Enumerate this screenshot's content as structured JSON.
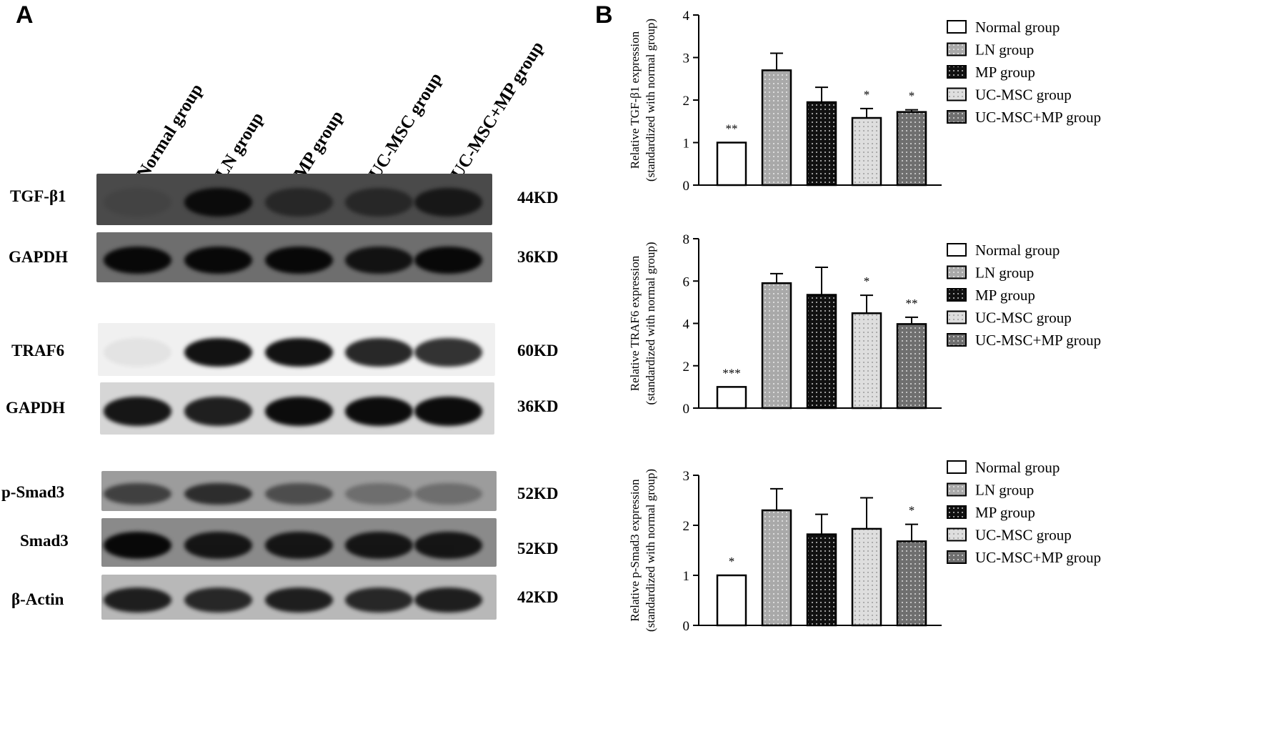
{
  "panel_a": {
    "letter": "A",
    "lanes": [
      "Normal group",
      "LN group",
      "MP group",
      "UC-MSC group",
      "UC-MSC+MP group"
    ],
    "blots": [
      {
        "protein": "TGF-β1",
        "kd": "44KD",
        "bg": "#4a4a4a",
        "band_color": "#0b0b0b",
        "intensity": [
          0.1,
          1.0,
          0.55,
          0.55,
          0.8
        ]
      },
      {
        "protein": "GAPDH",
        "kd": "36KD",
        "bg": "#6e6e6e",
        "band_color": "#080808",
        "intensity": [
          1.0,
          1.0,
          1.0,
          0.9,
          1.0
        ]
      },
      {
        "protein": "TRAF6",
        "kd": "60KD",
        "bg": "#f0f0f0",
        "band_color": "#121212",
        "intensity": [
          0.05,
          1.0,
          1.0,
          0.9,
          0.85
        ]
      },
      {
        "protein": "GAPDH",
        "kd": "36KD",
        "bg": "#d6d6d6",
        "band_color": "#0c0c0c",
        "intensity": [
          0.95,
          0.9,
          1.0,
          1.0,
          1.0
        ]
      },
      {
        "protein": "p-Smad3",
        "kd": "52KD",
        "bg": "#9c9c9c",
        "band_color": "#1a1a1a",
        "intensity": [
          0.7,
          0.85,
          0.6,
          0.35,
          0.35
        ]
      },
      {
        "protein": "Smad3",
        "kd": "52KD",
        "bg": "#8a8a8a",
        "band_color": "#080808",
        "intensity": [
          1.0,
          0.9,
          0.9,
          0.9,
          0.9
        ]
      },
      {
        "protein": "β-Actin",
        "kd": "42KD",
        "bg": "#b8b8b8",
        "band_color": "#0e0e0e",
        "intensity": [
          0.9,
          0.85,
          0.9,
          0.85,
          0.9
        ]
      }
    ]
  },
  "panel_b": {
    "letter": "B"
  },
  "legend_entries": [
    "Normal group",
    "LN group",
    "MP group",
    "UC-MSC group",
    "UC-MSC+MP group"
  ],
  "series_styles": [
    {
      "fill": "#ffffff",
      "dot": "none"
    },
    {
      "fill": "#a9a9a9",
      "dot": "#ffffff"
    },
    {
      "fill": "#111111",
      "dot": "#ffffff"
    },
    {
      "fill": "#dedede",
      "dot": "#888888"
    },
    {
      "fill": "#6f6f6f",
      "dot": "#ffffff"
    }
  ],
  "chart_data": [
    {
      "type": "bar",
      "ylabel_line1": "Relative TGF-β1 expression",
      "ylabel_line2": "(standardized with normal group)",
      "categories": [
        "Normal group",
        "LN group",
        "MP group",
        "UC-MSC group",
        "UC-MSC+MP group"
      ],
      "values": [
        1.0,
        2.7,
        1.95,
        1.58,
        1.72
      ],
      "errors": [
        0,
        0.4,
        0.35,
        0.22,
        0.05
      ],
      "significance": [
        "**",
        "",
        "",
        "*",
        "*"
      ],
      "ylim": [
        0,
        4
      ],
      "yticks": [
        "0",
        "1",
        "2",
        "3",
        "4"
      ]
    },
    {
      "type": "bar",
      "ylabel_line1": "Relative TRAF6 expression",
      "ylabel_line2": "(standardized with normal group)",
      "categories": [
        "Normal group",
        "LN group",
        "MP group",
        "UC-MSC group",
        "UC-MSC+MP group"
      ],
      "values": [
        1.0,
        5.9,
        5.35,
        4.48,
        3.97
      ],
      "errors": [
        0,
        0.45,
        1.3,
        0.85,
        0.32
      ],
      "significance": [
        "***",
        "",
        "",
        "*",
        "**"
      ],
      "ylim": [
        0,
        8
      ],
      "yticks": [
        "0",
        "2",
        "4",
        "6",
        "8"
      ]
    },
    {
      "type": "bar",
      "ylabel_line1": "Relative p-Smad3 expression",
      "ylabel_line2": "(standardized with normal group)",
      "categories": [
        "Normal group",
        "LN group",
        "MP group",
        "UC-MSC group",
        "UC-MSC+MP group"
      ],
      "values": [
        1.0,
        2.3,
        1.82,
        1.93,
        1.68
      ],
      "errors": [
        0,
        0.43,
        0.4,
        0.62,
        0.34
      ],
      "significance": [
        "*",
        "",
        "",
        "",
        "*"
      ],
      "ylim": [
        0,
        3
      ],
      "yticks": [
        "0",
        "1",
        "2",
        "3"
      ]
    }
  ]
}
